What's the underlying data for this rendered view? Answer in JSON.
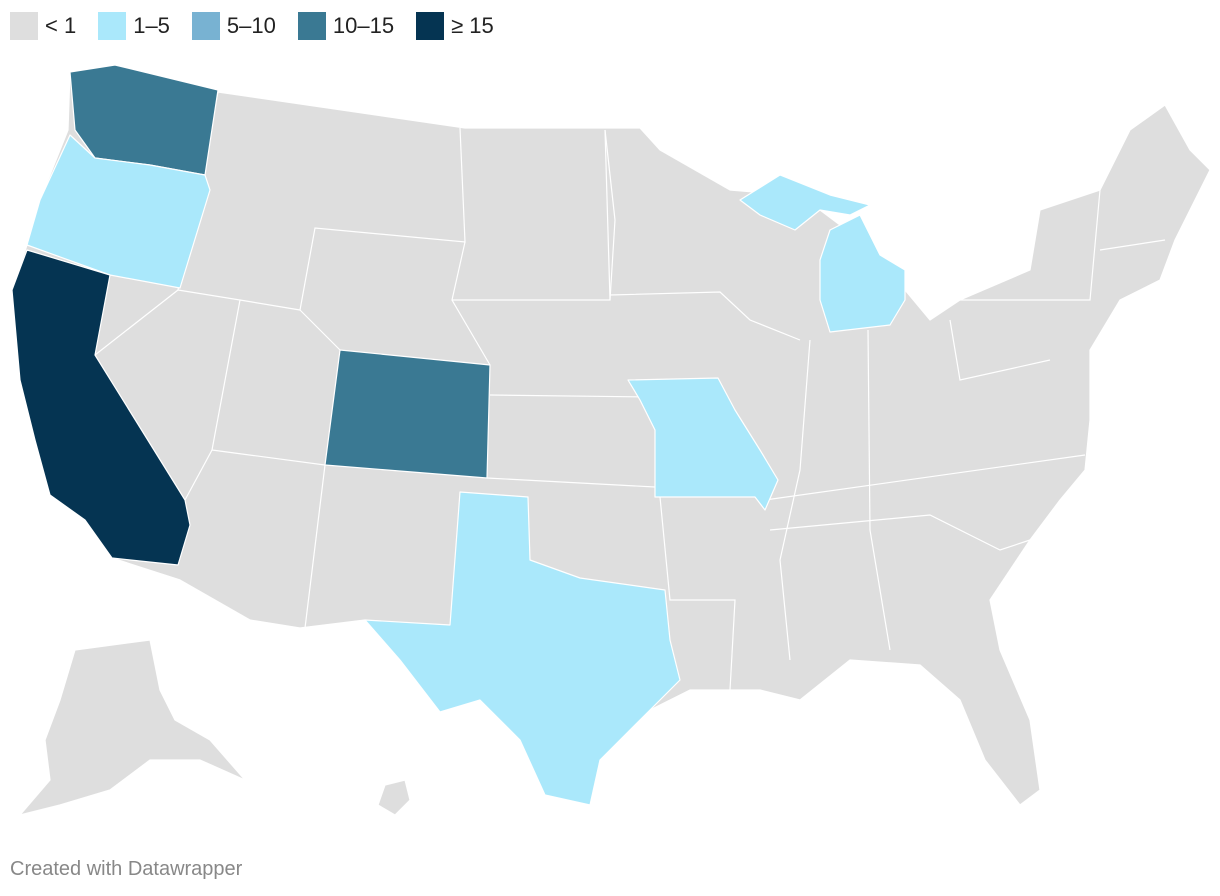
{
  "legend": {
    "items": [
      {
        "label": "< 1",
        "color": "#dedede"
      },
      {
        "label": "1–5",
        "color": "#aae8fb"
      },
      {
        "label": "5–10",
        "color": "#78b2d2"
      },
      {
        "label": "10–15",
        "color": "#3a7993"
      },
      {
        "label": "≥ 15",
        "color": "#053452"
      }
    ]
  },
  "footer": "Created with Datawrapper"
}
